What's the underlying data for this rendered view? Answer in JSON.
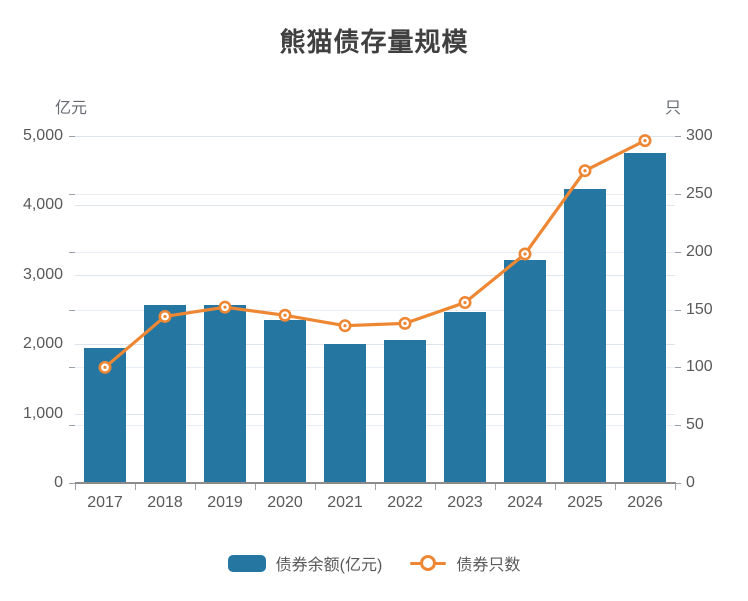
{
  "title": "熊猫债存量规模",
  "legend": {
    "series1": "债券余额(亿元)",
    "series2": "债券只数"
  },
  "colors": {
    "bar": "#2577a2",
    "line": "#ed8733",
    "marker_fill": "#ffffff",
    "grid_left": "#dde4ec",
    "grid_right": "#e9eef5",
    "axis_line": "#8b8b8b",
    "tick": "#9aa0a6",
    "label_text": "#595959",
    "title_text": "#404040"
  },
  "chart_data": {
    "type": "bar+line combo, dual y-axes",
    "title": "熊猫债存量规模",
    "categories": [
      "2017",
      "2018",
      "2019",
      "2020",
      "2021",
      "2022",
      "2023",
      "2024",
      "2025",
      "2026"
    ],
    "series": [
      {
        "name": "债券余额(亿元)",
        "type": "bar",
        "axis": "left",
        "values": [
          1950,
          2560,
          2570,
          2350,
          2010,
          2060,
          2460,
          3220,
          4240,
          4760
        ]
      },
      {
        "name": "债券只数",
        "type": "line",
        "axis": "right",
        "values": [
          100,
          144,
          152,
          145,
          136,
          138,
          156,
          198,
          270,
          296
        ]
      }
    ],
    "left_axis": {
      "unit": "亿元",
      "min": 0,
      "max": 5000,
      "step": 1000,
      "tick_labels": [
        "5,000",
        "4,000",
        "3,000",
        "2,000",
        "1,000",
        "0"
      ]
    },
    "right_axis": {
      "unit": "只",
      "min": 0,
      "max": 300,
      "step": 50,
      "tick_labels": [
        "300",
        "250",
        "200",
        "150",
        "100",
        "50",
        "0"
      ]
    },
    "grid": true,
    "legend_position": "bottom"
  }
}
